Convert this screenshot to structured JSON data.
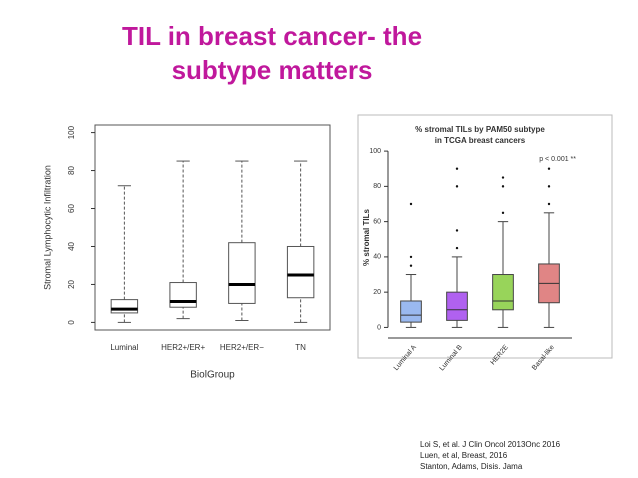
{
  "title": [
    "TIL in breast cancer- the",
    "subtype matters"
  ],
  "references": [
    "Loi S, et al. J Clin Oncol 2013Onc 2016",
    "Luen, et al, Breast, 2016",
    "Stanton, Adams, Disis. Jama"
  ],
  "chart_data": [
    {
      "type": "box",
      "xlabel": "BiolGroup",
      "ylabel": "Stromal Lymphocytic Infiltration",
      "categories": [
        "Luminal",
        "HER2+/ER+",
        "HER2+/ER−",
        "TN"
      ],
      "min": [
        0,
        2,
        1,
        0
      ],
      "q1": [
        5,
        8,
        10,
        13
      ],
      "median": [
        7,
        11,
        20,
        25
      ],
      "q3": [
        12,
        21,
        42,
        40
      ],
      "max": [
        72,
        85,
        85,
        85
      ],
      "ylim": [
        -4,
        104
      ],
      "yticks": [
        0,
        20,
        40,
        60,
        80,
        100
      ],
      "whisker_style": "dashed",
      "color": "#555555"
    },
    {
      "type": "box",
      "title": [
        "% stromal TILs by PAM50 subtype",
        "in TCGA breast cancers"
      ],
      "ylabel": "% stromal TILs",
      "annotation": "p < 0.001 **",
      "categories": [
        "Luminal A",
        "Luminal B",
        "HER2E",
        "Basal-like"
      ],
      "colors": [
        "#9ab9f0",
        "#b061f0",
        "#98d45a",
        "#e08585"
      ],
      "min": [
        0,
        0,
        0,
        0
      ],
      "q1": [
        3,
        4,
        10,
        14
      ],
      "median": [
        7,
        10,
        15,
        25
      ],
      "q3": [
        15,
        20,
        30,
        36
      ],
      "max": [
        30,
        40,
        60,
        65
      ],
      "outliers": [
        [
          35,
          40,
          70
        ],
        [
          45,
          55,
          80,
          90
        ],
        [
          65,
          80,
          85
        ],
        [
          70,
          80,
          90
        ]
      ],
      "ylim": [
        -6,
        108
      ],
      "yticks": [
        0,
        20,
        40,
        60,
        80,
        100
      ],
      "whisker_style": "solid"
    }
  ]
}
